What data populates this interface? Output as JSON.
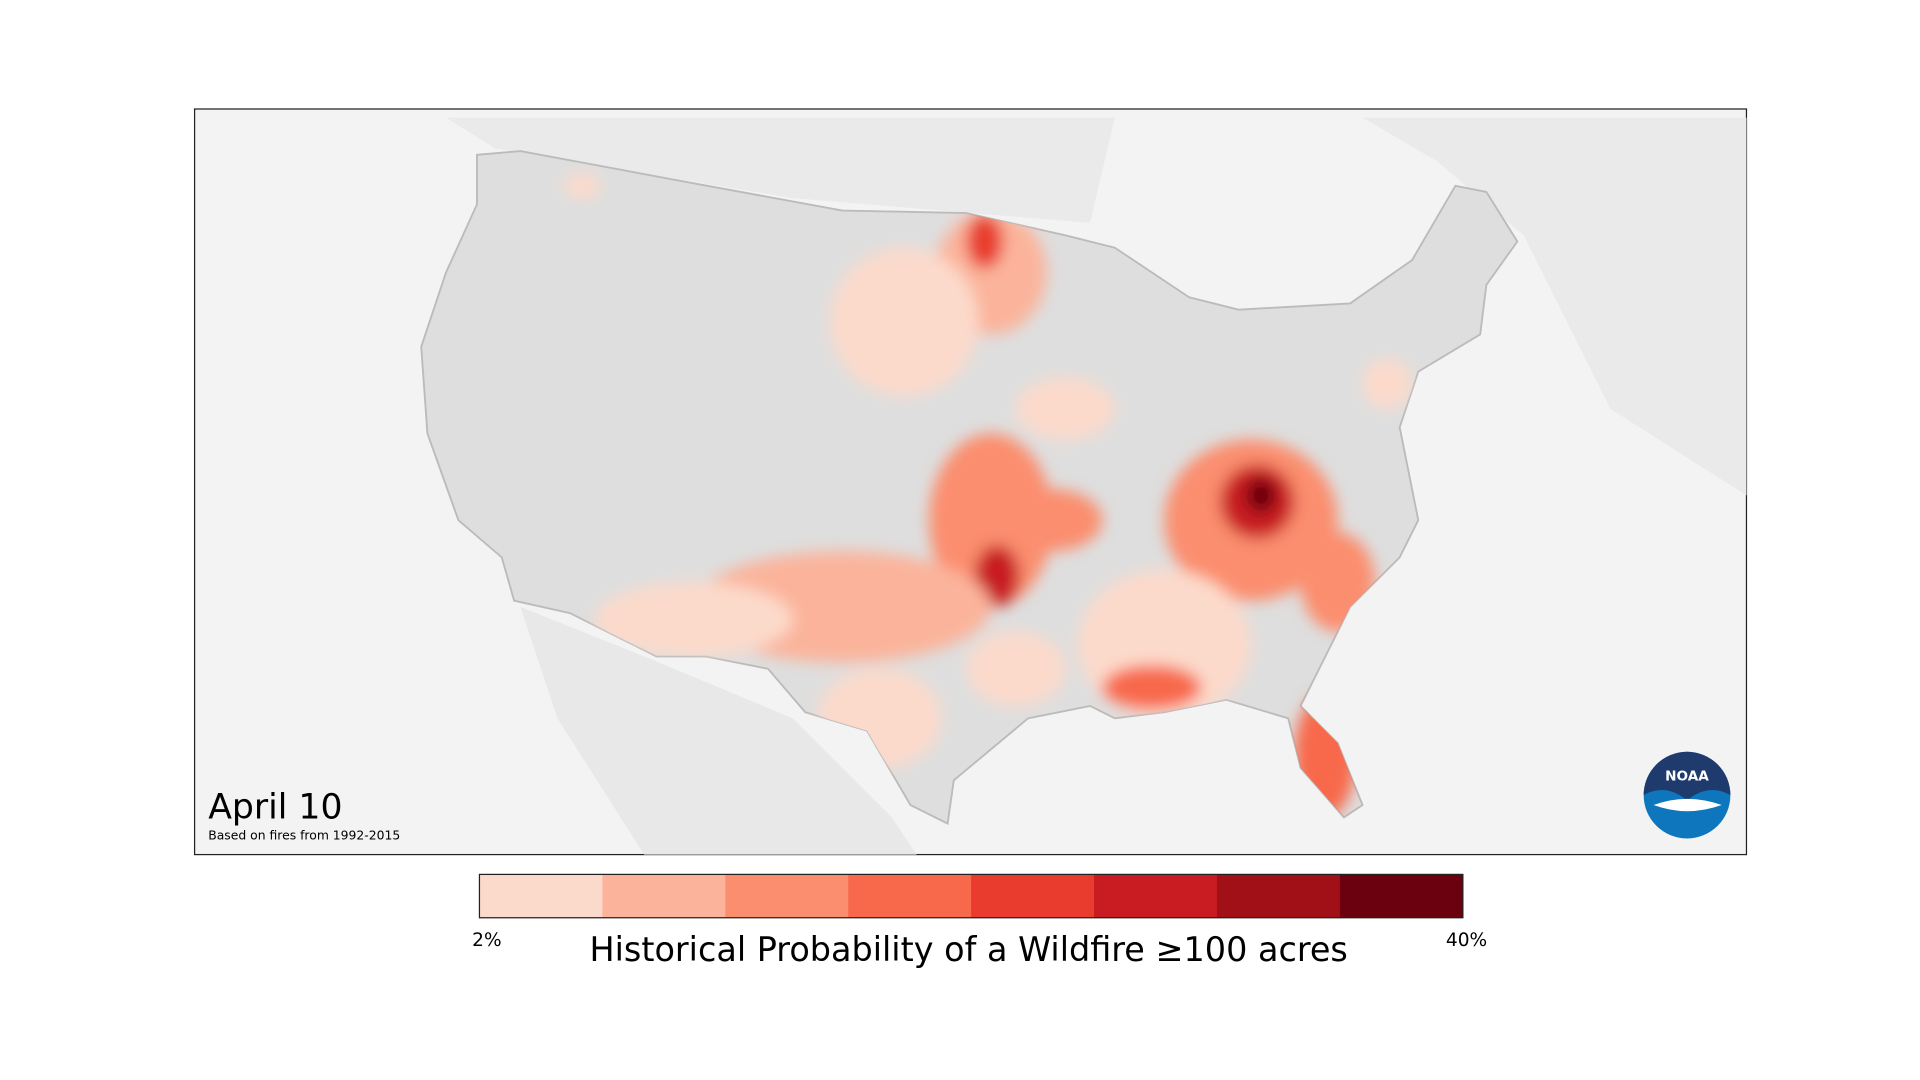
{
  "title": "April 10",
  "subtitle": "Based on fires from 1992-2015",
  "legend": {
    "title": "Historical Probability of a Wildfire ≥100 acres",
    "min_label": "2%",
    "max_label": "40%",
    "colors": [
      "#fcdacb",
      "#fbb49b",
      "#fb8e6e",
      "#f8694b",
      "#e93c2f",
      "#c81b22",
      "#a11017",
      "#6b010e"
    ]
  },
  "logo": {
    "label": "NOAA"
  }
}
